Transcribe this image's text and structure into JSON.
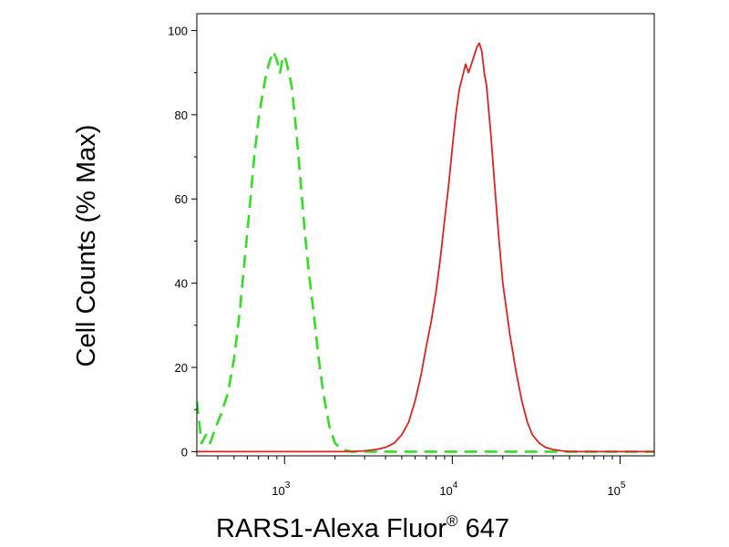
{
  "chart_data": {
    "type": "line",
    "title": "",
    "xlabel": "RARS1-Alexa Fluor",
    "xlabel_superscript": "®",
    "xlabel_suffix": " 647",
    "ylabel": "Cell Counts (% Max)",
    "xscale": "log",
    "xlim": [
      300,
      160000
    ],
    "ylim": [
      -1,
      104
    ],
    "grid": false,
    "legend": "none",
    "y_ticks": [
      0,
      20,
      40,
      60,
      80,
      100
    ],
    "y_tick_labels": [
      "0",
      "20",
      "40",
      "60",
      "80",
      "100"
    ],
    "x_ticks": [
      1000,
      10000,
      100000
    ],
    "x_tick_labels": [
      {
        "base": "10",
        "exp": "3"
      },
      {
        "base": "10",
        "exp": "4"
      },
      {
        "base": "10",
        "exp": "5"
      }
    ],
    "series": [
      {
        "style": "dashed",
        "color": "#33dd22",
        "x": [
          300,
          320,
          340,
          360,
          390,
          420,
          460,
          500,
          540,
          580,
          620,
          660,
          700,
          740,
          780,
          820,
          860,
          900,
          940,
          980,
          1020,
          1060,
          1100,
          1150,
          1200,
          1260,
          1320,
          1400,
          1500,
          1600,
          1700,
          1850,
          2000,
          2200,
          2500,
          3000,
          5000,
          10000,
          20000,
          50000,
          160000
        ],
        "y": [
          12,
          2,
          4,
          2,
          6,
          9,
          14,
          22,
          33,
          46,
          58,
          70,
          79,
          85,
          90,
          93,
          95,
          93,
          90,
          94,
          93,
          90,
          87,
          80,
          72,
          62,
          52,
          42,
          32,
          22,
          14,
          6,
          2,
          0.5,
          0,
          0,
          0,
          0,
          0,
          0,
          0
        ]
      },
      {
        "style": "solid",
        "color": "#dd2222",
        "x": [
          300,
          1000,
          2500,
          3000,
          3500,
          4000,
          4500,
          5000,
          5500,
          6000,
          6500,
          7000,
          7500,
          8000,
          8500,
          9000,
          9500,
          10000,
          10500,
          11000,
          11500,
          12000,
          12500,
          13000,
          13500,
          14000,
          14500,
          15000,
          15500,
          16000,
          17000,
          18000,
          19000,
          20000,
          22000,
          24000,
          26000,
          28000,
          30000,
          33000,
          36000,
          40000,
          45000,
          50000,
          160000
        ],
        "y": [
          0,
          0,
          0,
          0.2,
          0.5,
          1,
          2,
          4,
          7,
          12,
          18,
          25,
          31,
          38,
          46,
          55,
          63,
          72,
          80,
          86,
          89,
          92,
          90,
          92,
          94,
          96,
          97,
          95,
          90,
          87,
          75,
          62,
          50,
          40,
          28,
          19,
          12,
          7,
          4,
          2,
          1,
          0.5,
          0.2,
          0,
          0
        ]
      }
    ]
  }
}
